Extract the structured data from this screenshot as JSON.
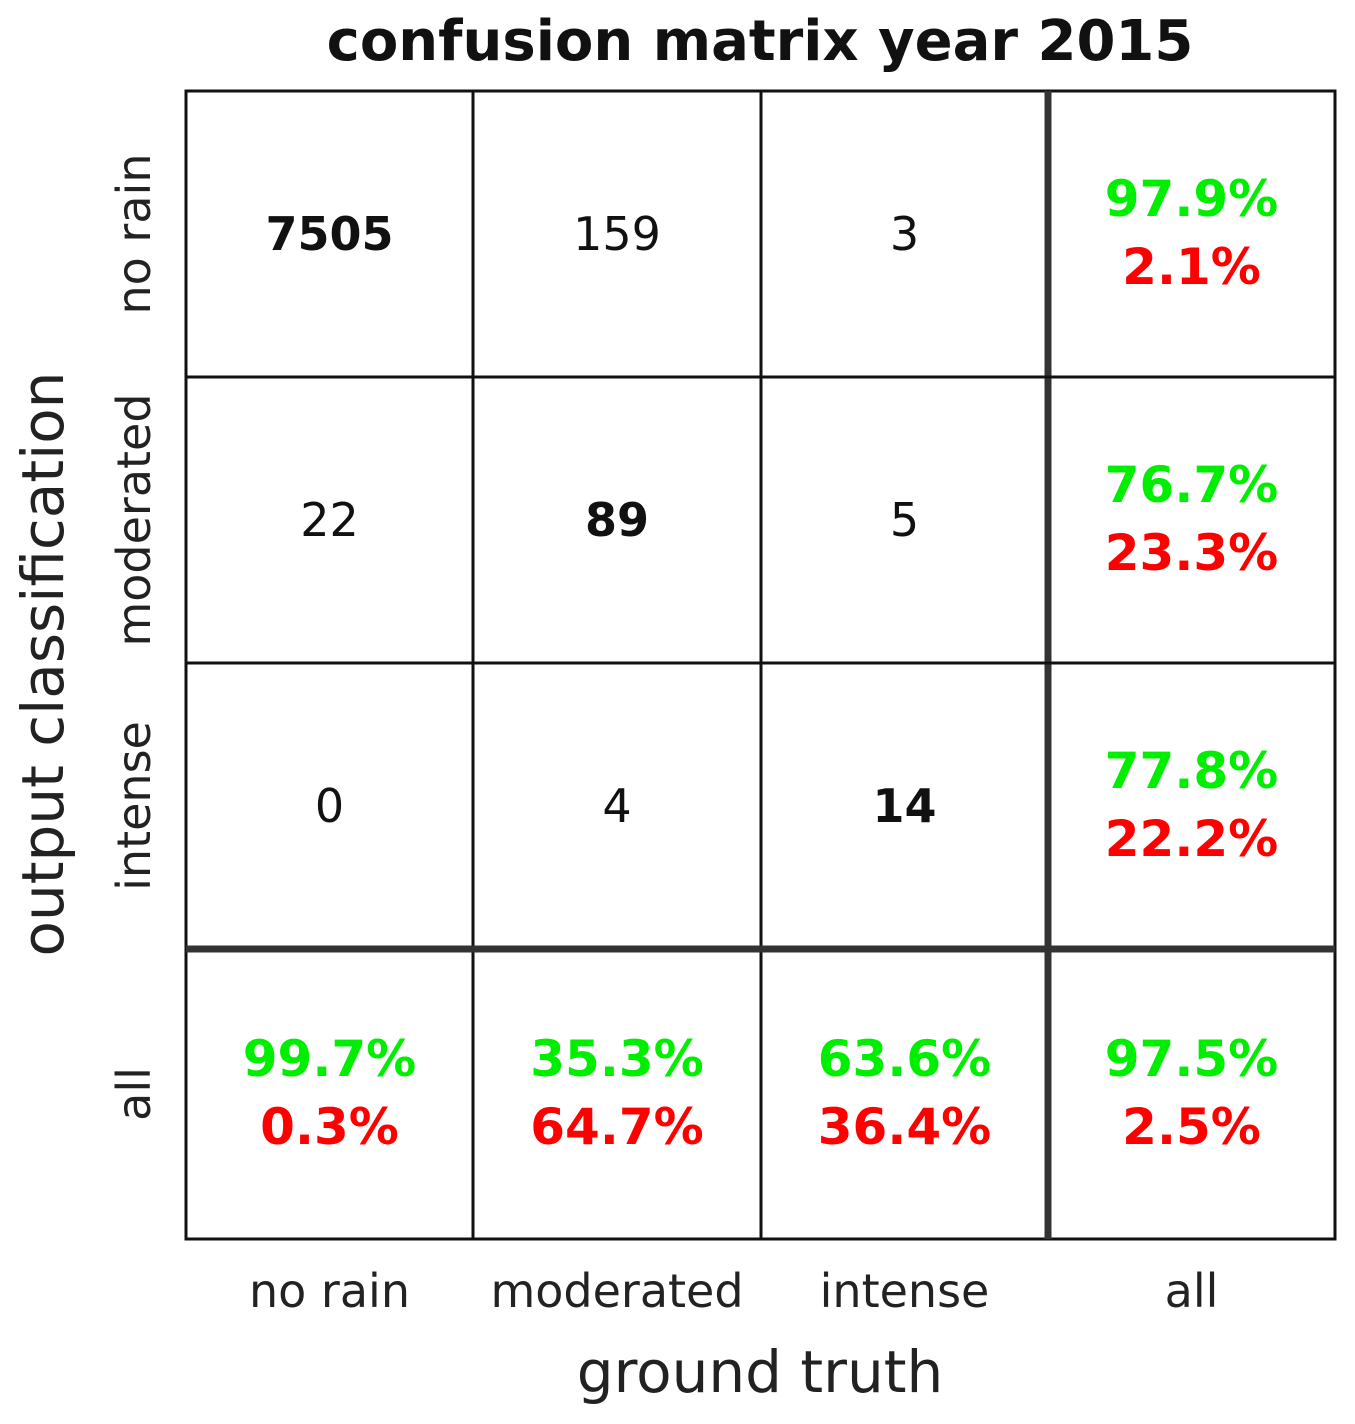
{
  "chart_data": {
    "type": "heatmap",
    "title": "confusion matrix year 2015",
    "xlabel": "ground truth",
    "ylabel": "output classification",
    "x_categories": [
      "no rain",
      "moderated",
      "intense",
      "all"
    ],
    "y_categories": [
      "no rain",
      "moderated",
      "intense",
      "all"
    ],
    "matrix": [
      [
        7505,
        159,
        3
      ],
      [
        22,
        89,
        5
      ],
      [
        0,
        4,
        14
      ]
    ],
    "row_summary": [
      {
        "correct": "97.9%",
        "error": "2.1%"
      },
      {
        "correct": "76.7%",
        "error": "23.3%"
      },
      {
        "correct": "77.8%",
        "error": "22.2%"
      }
    ],
    "column_summary": [
      {
        "correct": "99.7%",
        "error": "0.3%"
      },
      {
        "correct": "35.3%",
        "error": "64.7%"
      },
      {
        "correct": "63.6%",
        "error": "36.4%"
      }
    ],
    "overall": {
      "correct": "97.5%",
      "error": "2.5%"
    },
    "colors": {
      "correct": "#00ee00",
      "error": "#ff0000",
      "grid": "#111111",
      "separator": "#333333"
    }
  }
}
